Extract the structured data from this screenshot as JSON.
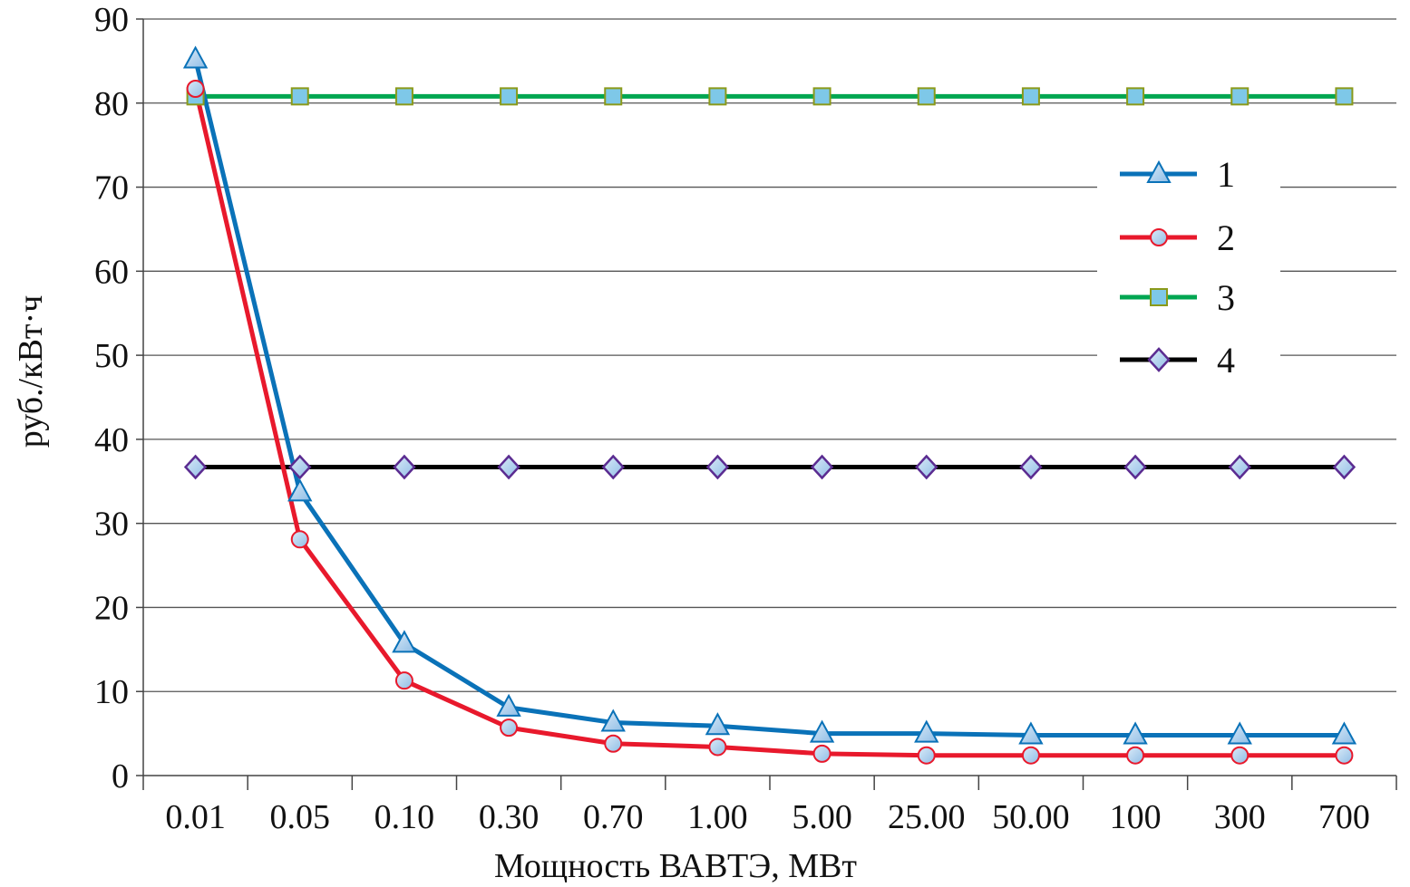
{
  "chart_data": {
    "type": "line",
    "title": "",
    "xlabel": "Мощность ВАВТЭ, МВт",
    "ylabel": "руб./кВт·ч",
    "categories": [
      "0.01",
      "0.05",
      "0.10",
      "0.30",
      "0.70",
      "1.00",
      "5.00",
      "25.00",
      "50.00",
      "100",
      "300",
      "700"
    ],
    "ylim": [
      0,
      90
    ],
    "yticks": [
      0,
      10,
      20,
      30,
      40,
      50,
      60,
      70,
      80,
      90
    ],
    "grid": true,
    "legend_placement": "right",
    "series": [
      {
        "name": "1",
        "color": "#0a72b8",
        "marker": "triangle",
        "values": [
          85.2,
          33.7,
          15.7,
          8.1,
          6.3,
          5.9,
          5.0,
          5.0,
          4.8,
          4.8,
          4.8,
          4.8
        ]
      },
      {
        "name": "2",
        "color": "#e8192c",
        "marker": "circle",
        "values": [
          81.7,
          28.1,
          11.3,
          5.7,
          3.8,
          3.4,
          2.6,
          2.4,
          2.4,
          2.4,
          2.4,
          2.4
        ]
      },
      {
        "name": "3",
        "color": "#00a651",
        "marker": "square",
        "values": [
          80.8,
          80.8,
          80.8,
          80.8,
          80.8,
          80.8,
          80.8,
          80.8,
          80.8,
          80.8,
          80.8,
          80.8
        ]
      },
      {
        "name": "4",
        "color": "#000000",
        "marker": "diamond",
        "values": [
          36.7,
          36.7,
          36.7,
          36.7,
          36.7,
          36.7,
          36.7,
          36.7,
          36.7,
          36.7,
          36.7,
          36.7
        ]
      }
    ]
  }
}
